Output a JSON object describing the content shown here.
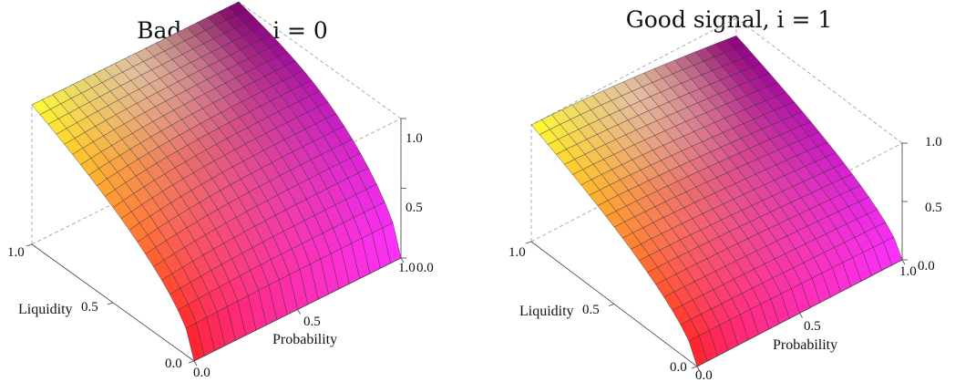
{
  "chart_data": [
    {
      "type": "surface",
      "title": "Bad signal, i = 0",
      "xlabel": "Probability",
      "ylabel": "Liquidity",
      "zlabel": "",
      "xlim": [
        0.0,
        1.0
      ],
      "ylim": [
        0.0,
        1.0
      ],
      "zlim": [
        0.0,
        1.0
      ],
      "x_ticks": [
        "0.0",
        "0.5",
        "1.0"
      ],
      "y_ticks": [
        "0.0",
        "0.5",
        "1.0"
      ],
      "z_ticks": [
        "0.0",
        "0.5",
        "1.0"
      ],
      "grid_lines": 20,
      "corner_values": {
        "p0_l0": 0.0,
        "p1_l0": 0.0,
        "p0_l1": 1.0,
        "p1_l1": 1.0
      },
      "colors": {
        "low_probability_high_liquidity": "#ffff33",
        "low_probability_low_liquidity": "#ff1a1a",
        "high_probability": "#ff33ff",
        "high_probability_high_liquidity": "#7a0070"
      }
    },
    {
      "type": "surface",
      "title": "Good signal, i = 1",
      "xlabel": "Probability",
      "ylabel": "Liquidity",
      "zlabel": "",
      "xlim": [
        0.0,
        1.0
      ],
      "ylim": [
        0.0,
        1.0
      ],
      "zlim": [
        0.0,
        1.0
      ],
      "x_ticks": [
        "0.0",
        "0.5",
        "1.0"
      ],
      "y_ticks": [
        "0.0",
        "0.5",
        "1.0"
      ],
      "z_ticks": [
        "0.0",
        "0.5",
        "1.0"
      ],
      "grid_lines": 20,
      "corner_values": {
        "p0_l0": 0.0,
        "p1_l0": 0.0,
        "p0_l1": 1.0,
        "p1_l1": 0.85
      },
      "colors": {
        "low_probability_high_liquidity": "#ffff33",
        "low_probability_low_liquidity": "#ff1a1a",
        "high_probability": "#ff33ff",
        "high_probability_high_liquidity": "#8a0080"
      }
    }
  ]
}
